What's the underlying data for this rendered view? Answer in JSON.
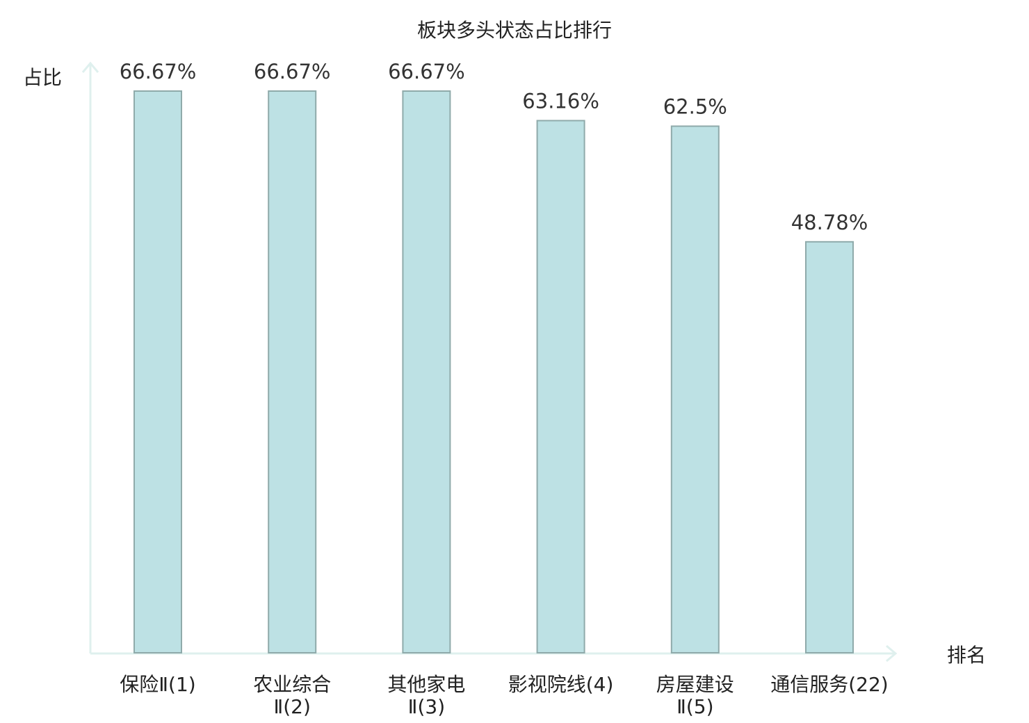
{
  "chart_data": {
    "type": "bar",
    "title": "板块多头状态占比排行",
    "ylabel": "占比",
    "xlabel": "排名",
    "ylim": [
      0,
      70
    ],
    "grid": false,
    "categories": [
      {
        "lines": [
          "保险Ⅱ(1)"
        ],
        "highlight": false
      },
      {
        "lines": [
          "农业综合",
          "Ⅱ(2)"
        ],
        "highlight": false
      },
      {
        "lines": [
          "其他家电",
          "Ⅱ(3)"
        ],
        "highlight": false
      },
      {
        "lines": [
          "影视院线(4)"
        ],
        "highlight": false
      },
      {
        "lines": [
          "房屋建设",
          "Ⅱ(5)"
        ],
        "highlight": false
      },
      {
        "lines": [
          "通信服务(22)"
        ],
        "highlight": true
      }
    ],
    "values": [
      66.67,
      66.67,
      66.67,
      63.16,
      62.5,
      48.78
    ],
    "value_labels": [
      "66.67%",
      "66.67%",
      "66.67%",
      "63.16%",
      "62.5%",
      "48.78%"
    ],
    "colors": {
      "bar_fill": "#bde1e4",
      "bar_stroke": "#8faaaa",
      "axis": "#dff0ee",
      "highlight_text": "#e0211b",
      "text": "#222222"
    }
  }
}
